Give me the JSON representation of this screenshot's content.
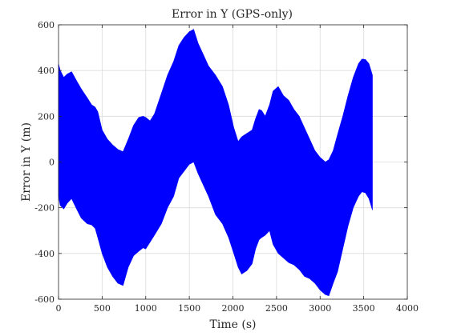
{
  "chart_data": {
    "type": "area",
    "title": "Error in Y (GPS-only)",
    "xlabel": "Time (s)",
    "ylabel": "Error in Y (m)",
    "xlim": [
      0,
      4000
    ],
    "ylim": [
      -600,
      600
    ],
    "xticks": [
      0,
      500,
      1000,
      1500,
      2000,
      2500,
      3000,
      3500,
      4000
    ],
    "yticks": [
      -600,
      -400,
      -200,
      0,
      200,
      400,
      600
    ],
    "grid": true,
    "legend": "none",
    "colors": {
      "fill": "#0000ff"
    },
    "series": [
      {
        "x": [
          0,
          20,
          60,
          100,
          150,
          200,
          260,
          330,
          380,
          420,
          450,
          500,
          560,
          620,
          680,
          740,
          800,
          860,
          920,
          970,
          1000,
          1050,
          1100,
          1180,
          1250,
          1320,
          1380,
          1440,
          1500,
          1550,
          1600,
          1660,
          1720,
          1800,
          1880,
          1950,
          2010,
          2060,
          2100,
          2160,
          2220,
          2260,
          2300,
          2330,
          2370,
          2420,
          2460,
          2520,
          2580,
          2640,
          2700,
          2760,
          2820,
          2880,
          2940,
          3000,
          3060,
          3100,
          3150,
          3200,
          3260,
          3320,
          3380,
          3440,
          3480,
          3520,
          3560,
          3600
        ],
        "upper": [
          430,
          400,
          370,
          385,
          395,
          360,
          320,
          280,
          250,
          240,
          220,
          140,
          100,
          75,
          55,
          45,
          100,
          160,
          195,
          200,
          195,
          180,
          210,
          300,
          380,
          440,
          510,
          545,
          570,
          580,
          520,
          470,
          420,
          380,
          330,
          250,
          150,
          90,
          110,
          125,
          140,
          190,
          230,
          225,
          200,
          250,
          310,
          330,
          290,
          270,
          230,
          200,
          150,
          100,
          50,
          20,
          0,
          10,
          50,
          120,
          200,
          290,
          370,
          430,
          450,
          448,
          430,
          380
        ],
        "lower": [
          -150,
          -190,
          -205,
          -180,
          -160,
          -200,
          -245,
          -270,
          -275,
          -290,
          -330,
          -400,
          -460,
          -500,
          -530,
          -540,
          -460,
          -410,
          -390,
          -375,
          -380,
          -350,
          -320,
          -270,
          -200,
          -150,
          -70,
          -40,
          -10,
          0,
          -50,
          -100,
          -150,
          -230,
          -270,
          -330,
          -400,
          -460,
          -490,
          -475,
          -445,
          -380,
          -340,
          -330,
          -320,
          -300,
          -360,
          -400,
          -420,
          -440,
          -450,
          -470,
          -500,
          -510,
          -530,
          -560,
          -580,
          -585,
          -530,
          -480,
          -380,
          -280,
          -200,
          -150,
          -130,
          -135,
          -160,
          -210
        ]
      }
    ]
  }
}
